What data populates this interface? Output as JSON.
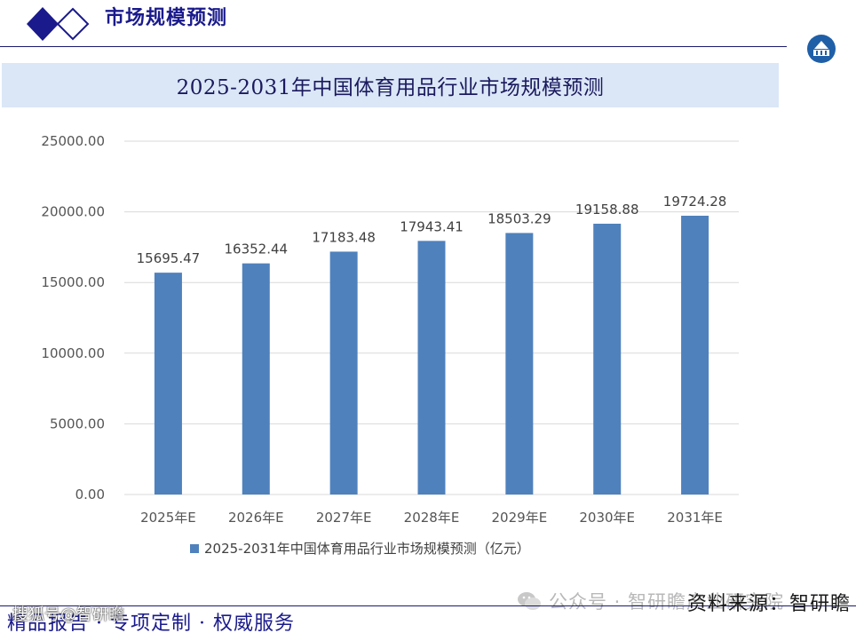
{
  "header": {
    "title": "市场规模预测"
  },
  "colors": {
    "navy": "#1a1a8c",
    "bar": "#4f81bd",
    "banner_bg": "#dbe7f7",
    "grid": "#d9d9d9"
  },
  "icons": {
    "logo": "double-diamond-logo",
    "badge": "round-building-badge",
    "wechat": "wechat-icon"
  },
  "chart_data": {
    "type": "bar",
    "title": "2025-2031年中国体育用品行业市场规模预测",
    "categories": [
      "2025年E",
      "2026年E",
      "2027年E",
      "2028年E",
      "2029年E",
      "2030年E",
      "2031年E"
    ],
    "series": [
      {
        "name": "2025-2031年中国体育用品行业市场规模预测（亿元）",
        "values": [
          15695.47,
          16352.44,
          17183.48,
          17943.41,
          18503.29,
          19158.88,
          19724.28
        ],
        "value_labels": [
          "15695.47",
          "16352.44",
          "17183.48",
          "17943.41",
          "18503.29",
          "19158.88",
          "19724.28"
        ]
      }
    ],
    "yticks": [
      "0.00",
      "5000.00",
      "10000.00",
      "15000.00",
      "20000.00",
      "25000.00"
    ],
    "ylim": [
      0,
      25000
    ],
    "grid": true,
    "legend": "bottom"
  },
  "watermark": {
    "wechat_text": "公众号 · 智研瞻产业研究院",
    "sohu_text": "搜狐号@智研瞻"
  },
  "footer": {
    "left_text": "精品报告 · 专项定制 · 权威服务",
    "source_text": "资料来源：智研瞻"
  }
}
